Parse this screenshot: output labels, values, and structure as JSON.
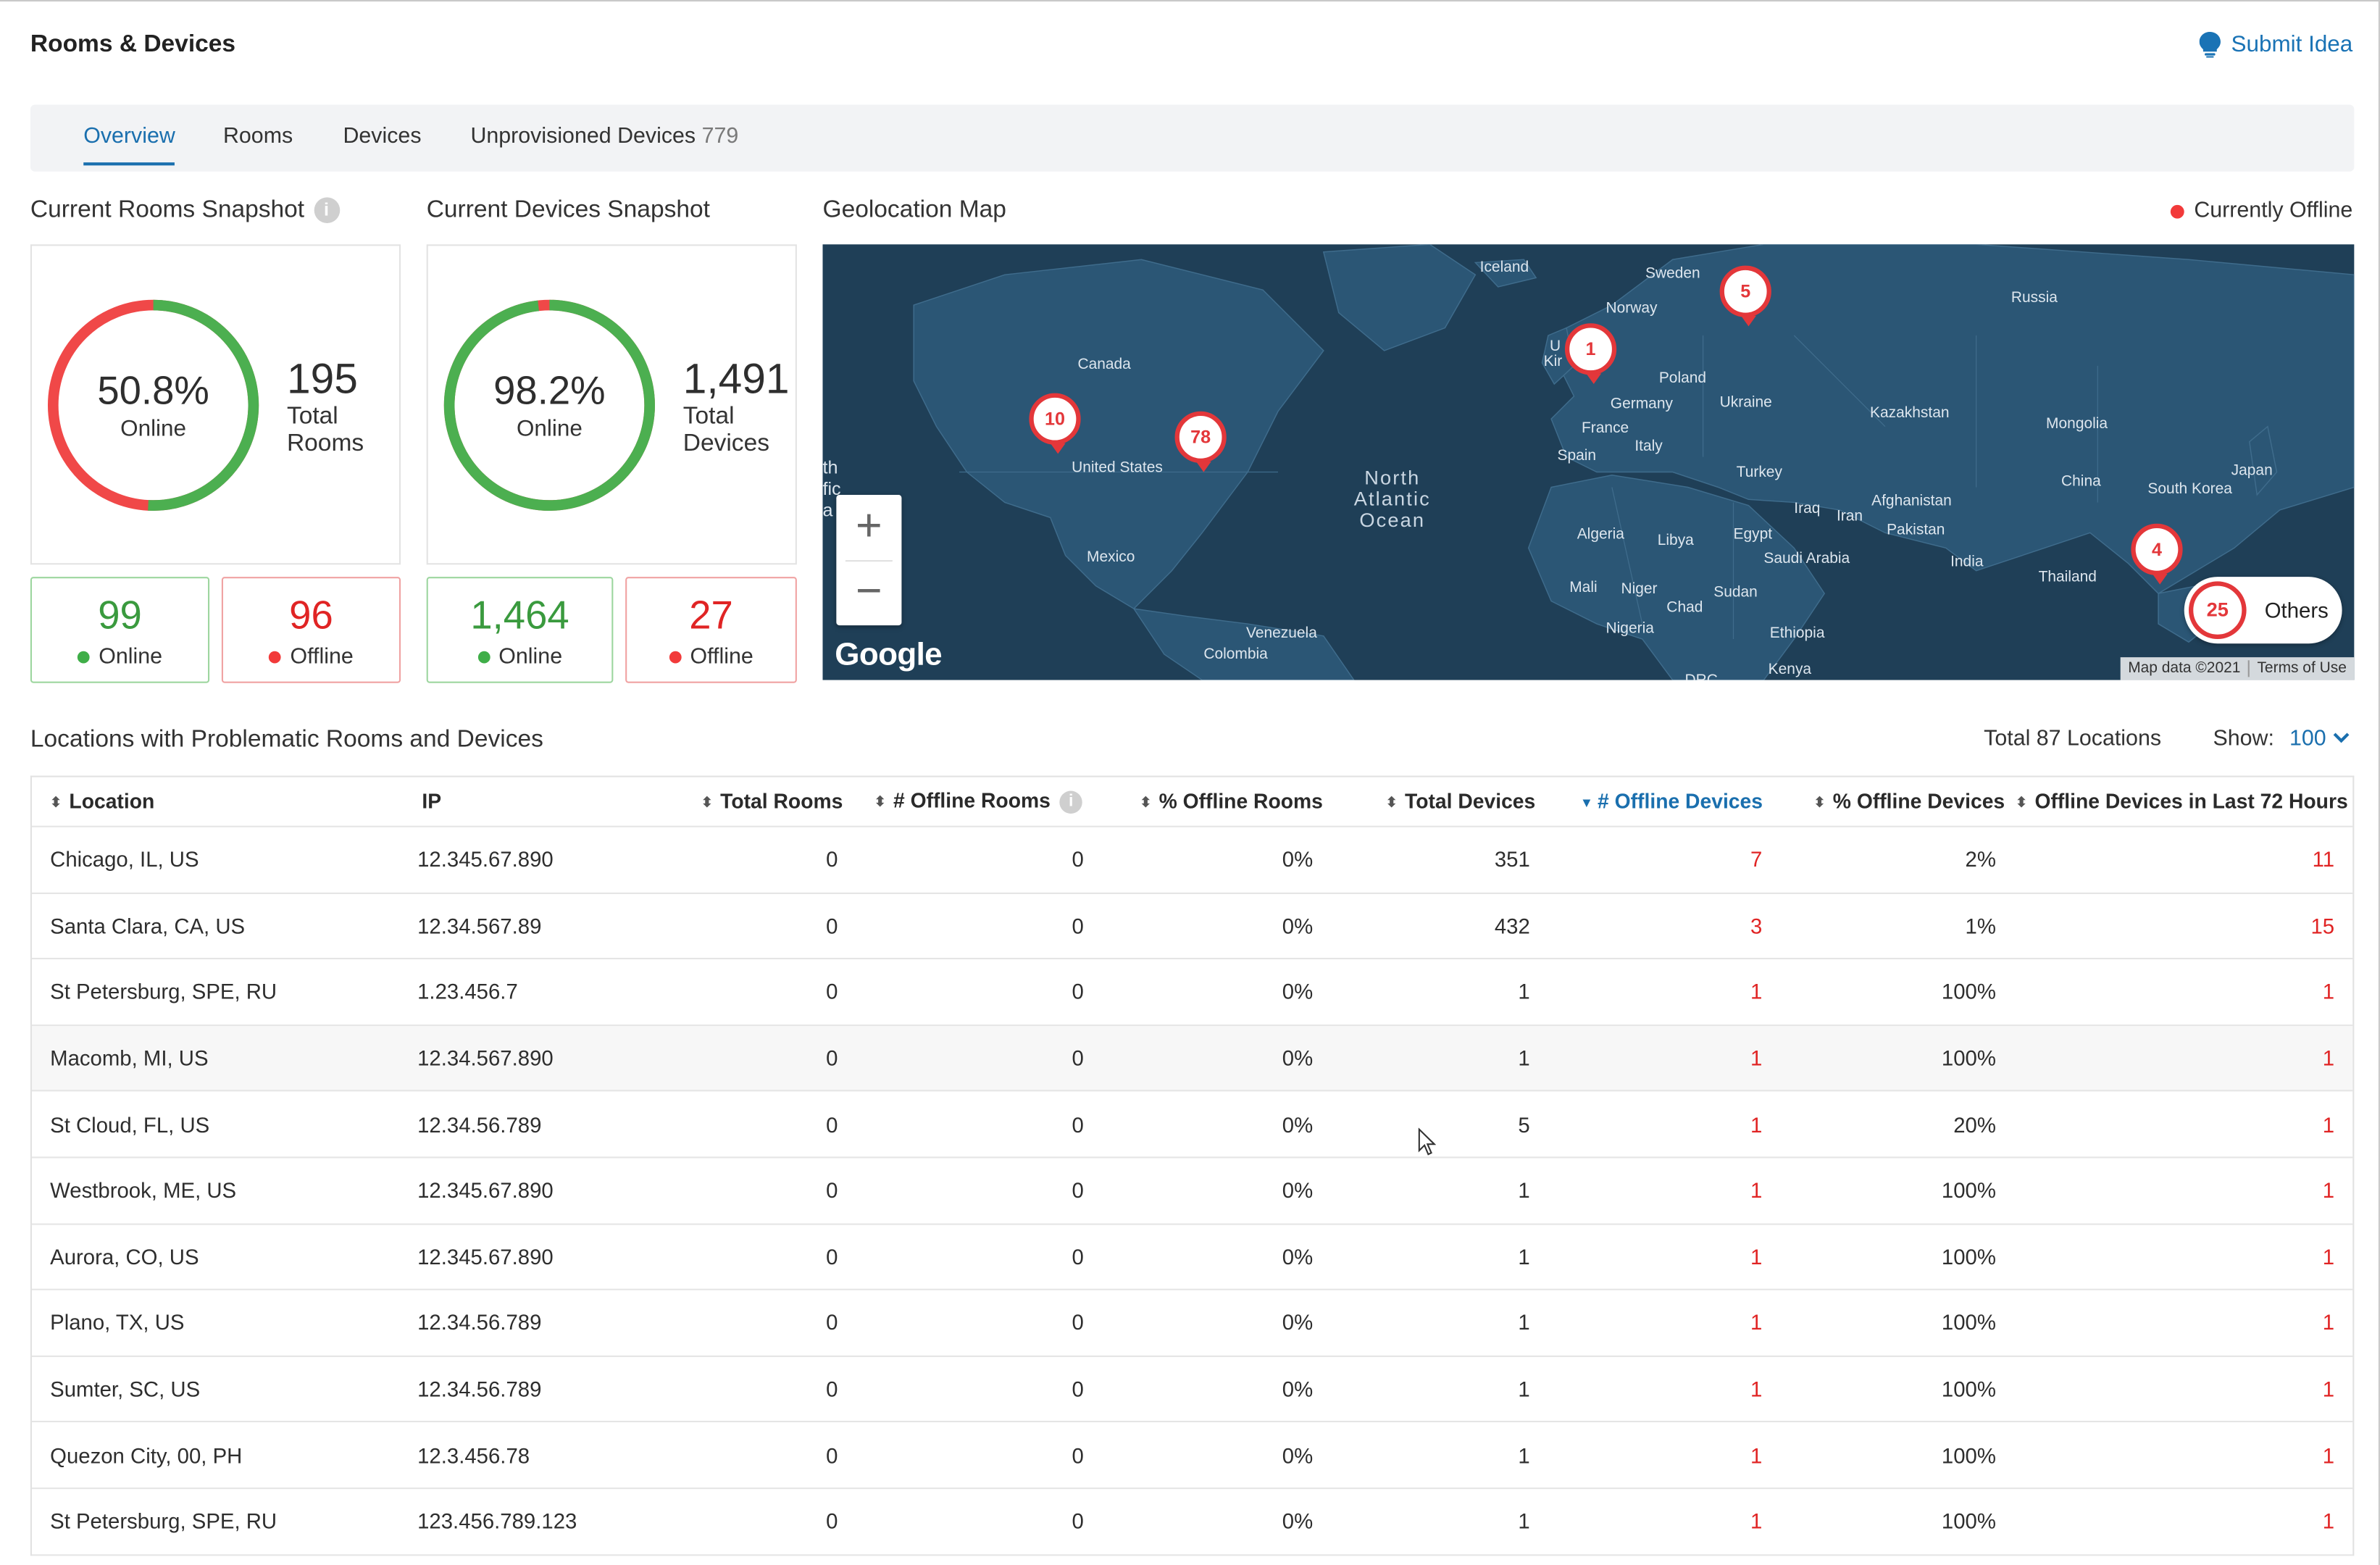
{
  "header": {
    "title": "Rooms & Devices",
    "submit_idea": "Submit Idea"
  },
  "tabs": [
    {
      "label": "Overview",
      "active": true
    },
    {
      "label": "Rooms"
    },
    {
      "label": "Devices"
    },
    {
      "label": "Unprovisioned Devices",
      "count": "779"
    }
  ],
  "rooms_snapshot": {
    "title": "Current Rooms Snapshot",
    "percent": "50.8%",
    "percent_label": "Online",
    "online_fraction": 0.508,
    "total": "195",
    "total_label_1": "Total",
    "total_label_2": "Rooms",
    "online_count": "99",
    "online_label": "Online",
    "offline_count": "96",
    "offline_label": "Offline"
  },
  "devices_snapshot": {
    "title": "Current Devices Snapshot",
    "percent": "98.2%",
    "percent_label": "Online",
    "online_fraction": 0.982,
    "total": "1,491",
    "total_label_1": "Total",
    "total_label_2": "Devices",
    "online_count": "1,464",
    "online_label": "Online",
    "offline_count": "27",
    "offline_label": "Offline"
  },
  "geo_map": {
    "title": "Geolocation Map",
    "legend": "Currently Offline",
    "country_labels": [
      "Iceland",
      "Sweden",
      "Norway",
      "Russia",
      "Canada",
      "Poland",
      "Germany",
      "Ukraine",
      "Kazakhstan",
      "Mongolia",
      "France",
      "Italy",
      "Spain",
      "United States",
      "Turkey",
      "China",
      "South Korea",
      "Japan",
      "Iraq",
      "Iran",
      "Afghanistan",
      "Pakistan",
      "Algeria",
      "Libya",
      "Egypt",
      "Saudi Arabia",
      "India",
      "Thailand",
      "Mexico",
      "Mali",
      "Niger",
      "Sudan",
      "Chad",
      "Nigeria",
      "Ethiopia",
      "Venezuela",
      "Colombia",
      "Kenya",
      "DRC",
      "th",
      "fic",
      "a",
      "U",
      "Kir"
    ],
    "ocean_label": [
      "North",
      "Atlantic",
      "Ocean"
    ],
    "pins": [
      "5",
      "1",
      "10",
      "78",
      "4"
    ],
    "others_count": "25",
    "others_label": "Others",
    "zoom_in": "+",
    "zoom_out": "−",
    "logo": "Google",
    "attribution": "Map data ©2021",
    "terms": "Terms of Use"
  },
  "locations": {
    "title": "Locations with Problematic Rooms and Devices",
    "total_label": "Total 87 Locations",
    "show_label": "Show:",
    "show_value": "100",
    "columns": [
      "Location",
      "IP",
      "Total Rooms",
      "# Offline Rooms",
      "% Offline Rooms",
      "Total Devices",
      "# Offline Devices",
      "% Offline Devices",
      "Offline Devices in Last 72 Hours"
    ],
    "rows": [
      [
        "Chicago, IL, US",
        "12.345.67.890",
        "0",
        "0",
        "0%",
        "351",
        "7",
        "2%",
        "11"
      ],
      [
        "Santa Clara, CA, US",
        "12.34.567.89",
        "0",
        "0",
        "0%",
        "432",
        "3",
        "1%",
        "15"
      ],
      [
        "St Petersburg, SPE, RU",
        "1.23.456.7",
        "0",
        "0",
        "0%",
        "1",
        "1",
        "100%",
        "1"
      ],
      [
        "Macomb, MI, US",
        "12.34.567.890",
        "0",
        "0",
        "0%",
        "1",
        "1",
        "100%",
        "1"
      ],
      [
        "St Cloud, FL, US",
        "12.34.56.789",
        "0",
        "0",
        "0%",
        "5",
        "1",
        "20%",
        "1"
      ],
      [
        "Westbrook, ME, US",
        "12.345.67.890",
        "0",
        "0",
        "0%",
        "1",
        "1",
        "100%",
        "1"
      ],
      [
        "Aurora, CO, US",
        "12.345.67.890",
        "0",
        "0",
        "0%",
        "1",
        "1",
        "100%",
        "1"
      ],
      [
        "Plano, TX, US",
        "12.34.56.789",
        "0",
        "0",
        "0%",
        "1",
        "1",
        "100%",
        "1"
      ],
      [
        "Sumter, SC, US",
        "12.34.56.789",
        "0",
        "0",
        "0%",
        "1",
        "1",
        "100%",
        "1"
      ],
      [
        "Quezon City, 00, PH",
        "12.3.456.78",
        "0",
        "0",
        "0%",
        "1",
        "1",
        "100%",
        "1"
      ],
      [
        "St Petersburg, SPE, RU",
        "123.456.789.123",
        "0",
        "0",
        "0%",
        "1",
        "1",
        "100%",
        "1"
      ]
    ]
  },
  "colors": {
    "online": "#4caf50",
    "offline": "#f04848",
    "accent": "#1a6fae",
    "map": "#1f3f57",
    "land": "#2b5675"
  }
}
